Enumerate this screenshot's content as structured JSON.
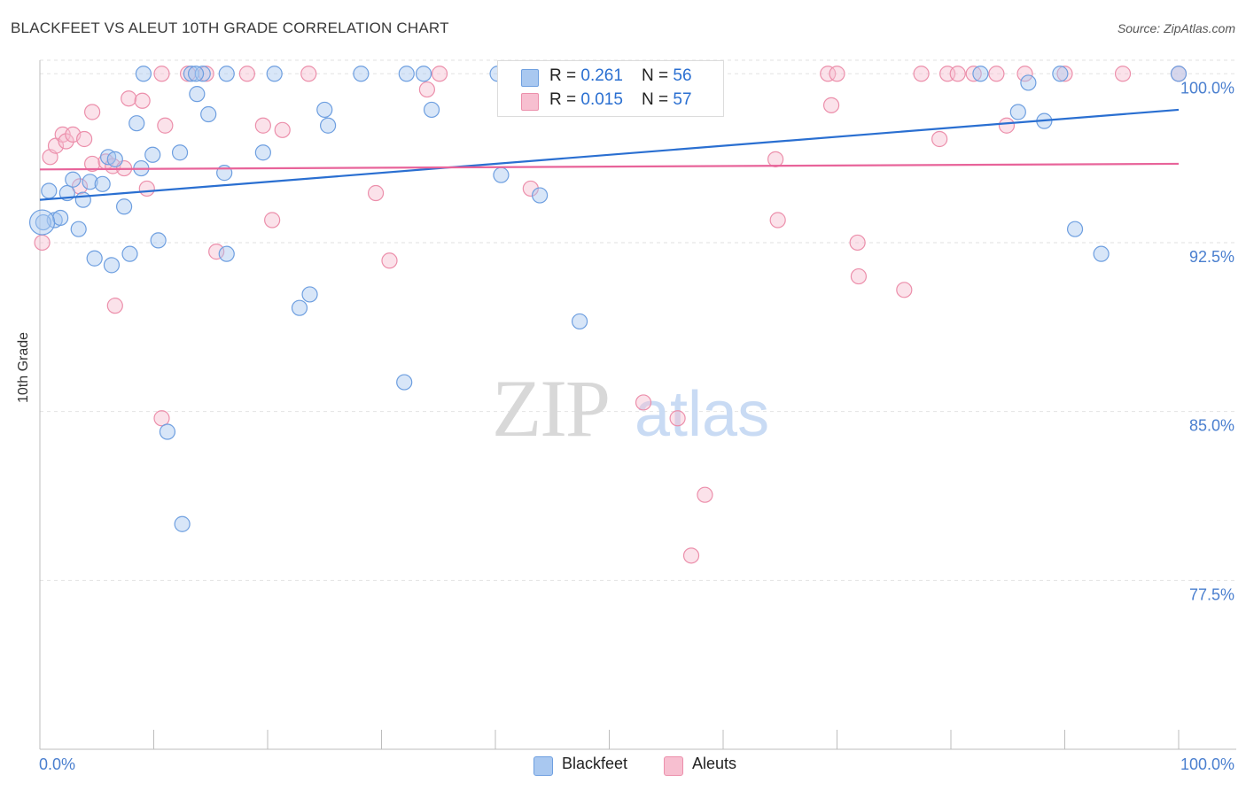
{
  "header": {
    "title": "BLACKFEET VS ALEUT 10TH GRADE CORRELATION CHART",
    "source": "Source: ZipAtlas.com"
  },
  "legend": {
    "rows": [
      {
        "r_label": "R = ",
        "r_value": "0.261",
        "n_label": "N = ",
        "n_value": "56"
      },
      {
        "r_label": "R = ",
        "r_value": "0.015",
        "n_label": "N = ",
        "n_value": "57"
      }
    ],
    "series": [
      "Blackfeet",
      "Aleuts"
    ]
  },
  "colors": {
    "blackfeet_fill": "#a9c8f0",
    "blackfeet_stroke": "#6e9fe0",
    "blackfeet_line": "#2a6fd1",
    "aleuts_fill": "#f7bfd0",
    "aleuts_stroke": "#ec8fab",
    "aleuts_line": "#e8649a",
    "tick_label": "#4a7fcf"
  },
  "chart_data": {
    "type": "scatter",
    "title": "BLACKFEET VS ALEUT 10TH GRADE CORRELATION CHART",
    "xlabel": "",
    "ylabel": "10th Grade",
    "xlim": [
      0,
      100
    ],
    "ylim": [
      70.0,
      100.6
    ],
    "x_tick_labels": [
      "0.0%",
      "100.0%"
    ],
    "y_ticks": [
      77.5,
      85.0,
      92.5,
      100.0
    ],
    "y_tick_labels": [
      "77.5%",
      "85.0%",
      "92.5%",
      "100.0%"
    ],
    "grid": true,
    "legend_position": "top-center",
    "watermark": "ZIPatlas",
    "series": [
      {
        "name": "Blackfeet",
        "r": 0.261,
        "n": 56,
        "trend": {
          "x": [
            0,
            100
          ],
          "y": [
            94.4,
            98.4
          ]
        },
        "points": [
          [
            0.8,
            94.8
          ],
          [
            2.4,
            94.7
          ],
          [
            2.9,
            95.3
          ],
          [
            3.8,
            94.4
          ],
          [
            4.4,
            95.2
          ],
          [
            5.5,
            95.1
          ],
          [
            6.0,
            96.3
          ],
          [
            6.6,
            96.2
          ],
          [
            1.3,
            93.5
          ],
          [
            1.8,
            93.6
          ],
          [
            3.4,
            93.1
          ],
          [
            4.8,
            91.8
          ],
          [
            6.3,
            91.5
          ],
          [
            7.4,
            94.1
          ],
          [
            7.9,
            92.0
          ],
          [
            8.5,
            97.8
          ],
          [
            8.9,
            95.8
          ],
          [
            9.9,
            96.4
          ],
          [
            10.4,
            92.6
          ],
          [
            11.2,
            84.1
          ],
          [
            12.5,
            80.0
          ],
          [
            12.3,
            96.5
          ],
          [
            13.8,
            99.1
          ],
          [
            14.8,
            98.2
          ],
          [
            16.2,
            95.6
          ],
          [
            16.4,
            92.0
          ],
          [
            19.6,
            96.5
          ],
          [
            22.8,
            89.6
          ],
          [
            23.7,
            90.2
          ],
          [
            25.0,
            98.4
          ],
          [
            25.3,
            97.7
          ],
          [
            32.0,
            86.3
          ],
          [
            34.4,
            98.4
          ],
          [
            40.5,
            95.5
          ],
          [
            43.9,
            94.6
          ],
          [
            47.4,
            89.0
          ],
          [
            9.1,
            100.0
          ],
          [
            13.3,
            100.0
          ],
          [
            14.3,
            100.0
          ],
          [
            16.4,
            100.0
          ],
          [
            20.6,
            100.0
          ],
          [
            28.2,
            100.0
          ],
          [
            32.2,
            100.0
          ],
          [
            33.7,
            100.0
          ],
          [
            40.2,
            100.0
          ],
          [
            47.1,
            100.0
          ],
          [
            82.6,
            100.0
          ],
          [
            85.9,
            98.3
          ],
          [
            86.8,
            99.6
          ],
          [
            88.2,
            97.9
          ],
          [
            90.9,
            93.1
          ],
          [
            93.2,
            92.0
          ],
          [
            89.6,
            100.0
          ],
          [
            100.0,
            100.0
          ],
          [
            0.3,
            93.4
          ],
          [
            13.7,
            100.0
          ]
        ]
      },
      {
        "name": "Aleuts",
        "r": 0.015,
        "n": 57,
        "trend": {
          "x": [
            0,
            100
          ],
          "y": [
            95.75,
            96.0
          ]
        },
        "points": [
          [
            0.2,
            92.5
          ],
          [
            0.9,
            96.3
          ],
          [
            1.4,
            96.8
          ],
          [
            2.0,
            97.3
          ],
          [
            2.3,
            97.0
          ],
          [
            2.9,
            97.3
          ],
          [
            3.5,
            95.0
          ],
          [
            3.9,
            97.1
          ],
          [
            4.6,
            98.3
          ],
          [
            4.6,
            96.0
          ],
          [
            5.8,
            96.1
          ],
          [
            6.4,
            95.9
          ],
          [
            6.6,
            89.7
          ],
          [
            7.4,
            95.8
          ],
          [
            7.8,
            98.9
          ],
          [
            9.0,
            98.8
          ],
          [
            9.4,
            94.9
          ],
          [
            10.7,
            84.7
          ],
          [
            11.0,
            97.7
          ],
          [
            15.5,
            92.1
          ],
          [
            19.6,
            97.7
          ],
          [
            20.4,
            93.5
          ],
          [
            21.3,
            97.5
          ],
          [
            29.5,
            94.7
          ],
          [
            30.7,
            91.7
          ],
          [
            34.0,
            99.3
          ],
          [
            43.1,
            94.9
          ],
          [
            53.0,
            85.4
          ],
          [
            56.0,
            84.7
          ],
          [
            55.5,
            100.0
          ],
          [
            58.4,
            81.3
          ],
          [
            57.2,
            78.6
          ],
          [
            64.6,
            96.2
          ],
          [
            64.8,
            93.5
          ],
          [
            10.7,
            100.0
          ],
          [
            13.0,
            100.0
          ],
          [
            14.6,
            100.0
          ],
          [
            18.2,
            100.0
          ],
          [
            23.6,
            100.0
          ],
          [
            35.1,
            100.0
          ],
          [
            69.5,
            98.6
          ],
          [
            71.8,
            92.5
          ],
          [
            71.9,
            91.0
          ],
          [
            75.9,
            90.4
          ],
          [
            69.2,
            100.0
          ],
          [
            70.0,
            100.0
          ],
          [
            77.4,
            100.0
          ],
          [
            79.7,
            100.0
          ],
          [
            80.6,
            100.0
          ],
          [
            82.0,
            100.0
          ],
          [
            84.0,
            100.0
          ],
          [
            86.5,
            100.0
          ],
          [
            79.0,
            97.1
          ],
          [
            84.9,
            97.7
          ],
          [
            90.0,
            100.0
          ],
          [
            95.1,
            100.0
          ],
          [
            100.0,
            100.0
          ]
        ]
      }
    ]
  }
}
